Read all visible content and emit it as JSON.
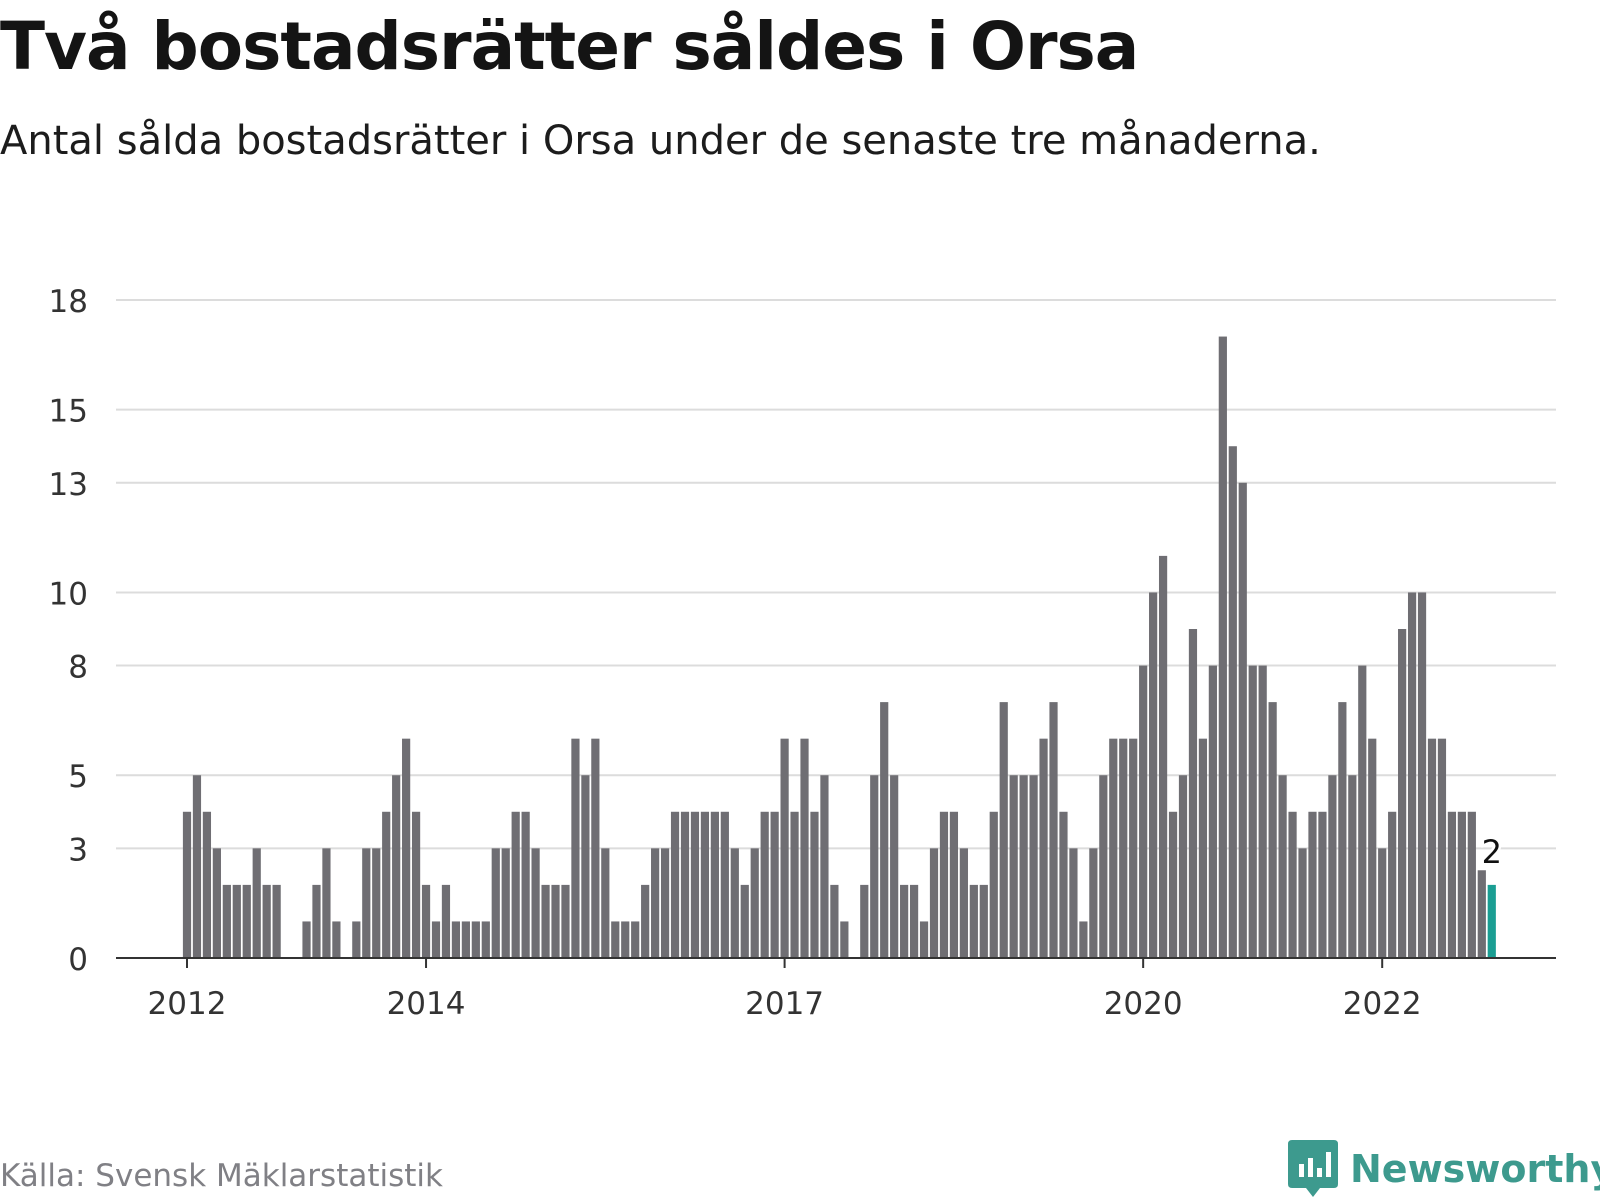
{
  "title": "Två bostadsrätter såldes i Orsa",
  "subtitle": "Antal sålda bostadsrätter i Orsa under de senaste tre månaderna.",
  "source": "Källa: Svensk Mäklarstatistik",
  "brand": "Newsworthy",
  "colors": {
    "bar": "#6f6e73",
    "highlight": "#1a9e93",
    "grid": "#dcdcdc",
    "axis": "#333333",
    "brand": "#3d9a8e"
  },
  "chart_data": {
    "type": "bar",
    "title": "Två bostadsrätter såldes i Orsa",
    "xlabel": "",
    "ylabel": "",
    "ylim": [
      0,
      18
    ],
    "y_ticks": [
      0,
      3,
      5,
      8,
      10,
      13,
      15,
      18
    ],
    "y_tick_labels": [
      "0",
      "3",
      "5",
      "8",
      "10",
      "13",
      "15",
      "18"
    ],
    "x_tick_labels": [
      {
        "label": "2012",
        "at_index": 0
      },
      {
        "label": "2014",
        "at_index": 24
      },
      {
        "label": "2017",
        "at_index": 60
      },
      {
        "label": "2020",
        "at_index": 96
      },
      {
        "label": "2022",
        "at_index": 120
      }
    ],
    "grid": true,
    "highlight_last": true,
    "last_value_label": "2",
    "values": [
      4,
      5,
      4,
      3,
      2,
      2,
      2,
      3,
      2,
      2,
      0,
      0,
      1,
      2,
      3,
      1,
      0,
      1,
      3,
      3,
      4,
      5,
      6,
      4,
      2,
      1,
      2,
      1,
      1,
      1,
      1,
      3,
      3,
      4,
      4,
      3,
      2,
      2,
      2,
      6,
      5,
      6,
      3,
      1,
      1,
      1,
      2,
      3,
      3,
      4,
      4,
      4,
      4,
      4,
      4,
      3,
      2,
      3,
      4,
      4,
      6,
      4,
      6,
      4,
      5,
      2,
      1,
      0,
      2,
      5,
      7,
      5,
      2,
      2,
      1,
      3,
      4,
      4,
      3,
      2,
      2,
      4,
      7,
      5,
      5,
      5,
      6,
      7,
      4,
      3,
      1,
      3,
      5,
      6,
      6,
      6,
      8,
      10,
      11,
      4,
      5,
      9,
      6,
      8,
      17,
      14,
      13,
      8,
      8,
      7,
      5,
      4,
      3,
      4,
      4,
      5,
      7,
      5,
      8,
      6,
      3,
      4,
      9,
      10,
      10,
      6,
      6,
      4,
      4,
      4,
      2.4,
      2
    ]
  }
}
